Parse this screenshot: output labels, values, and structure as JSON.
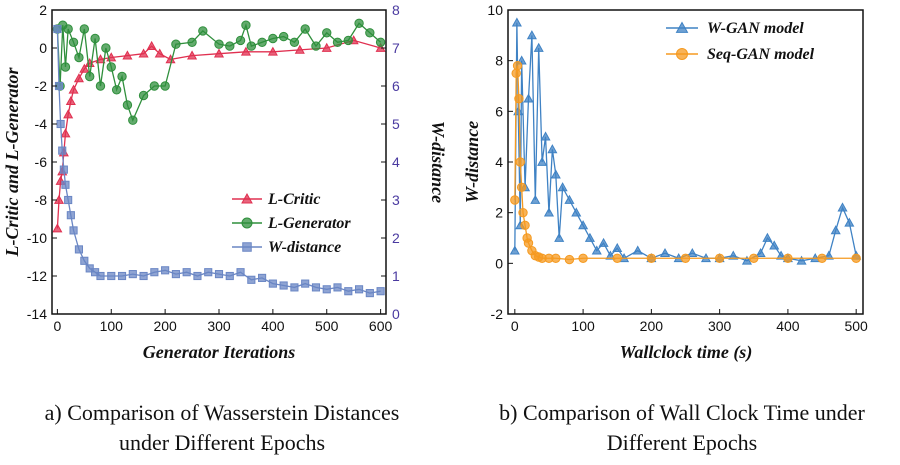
{
  "captions": {
    "left": [
      "a) Comparison of Wasserstein Distances",
      "under Different Epochs"
    ],
    "right": [
      "b) Comparison of Wall Clock Time under",
      "Different Epochs"
    ]
  },
  "chart_data": [
    {
      "type": "line",
      "xlabel": "Generator Iterations",
      "ylabel": "L-Critic and L-Generator",
      "y2label": "W-distance",
      "xlim": [
        -10,
        610
      ],
      "ylim": [
        -14,
        2
      ],
      "y2lim": [
        0,
        8
      ],
      "xticks": [
        0,
        100,
        200,
        300,
        400,
        500,
        600
      ],
      "yticks": [
        2,
        0,
        -2,
        -4,
        -6,
        -8,
        -10,
        -12,
        -14
      ],
      "y2ticks": [
        8,
        7,
        6,
        5,
        4,
        3,
        2,
        1,
        0
      ],
      "legend_position": "right-middle",
      "series": [
        {
          "name": "L-Critic",
          "axis": "left",
          "color": "#e03050",
          "marker": "triangle",
          "x": [
            0,
            3,
            6,
            9,
            12,
            15,
            20,
            25,
            30,
            40,
            50,
            60,
            80,
            100,
            130,
            160,
            175,
            190,
            210,
            250,
            300,
            350,
            400,
            450,
            500,
            550,
            600
          ],
          "y": [
            -9.5,
            -8.0,
            -7.0,
            -6.5,
            -5.5,
            -4.5,
            -3.5,
            -2.8,
            -2.2,
            -1.6,
            -1.1,
            -0.8,
            -0.6,
            -0.5,
            -0.4,
            -0.3,
            0.1,
            -0.3,
            -0.6,
            -0.4,
            -0.3,
            -0.2,
            -0.2,
            -0.1,
            0.0,
            0.4,
            0.0
          ]
        },
        {
          "name": "L-Generator",
          "axis": "left",
          "color": "#2f8f3c",
          "marker": "circle",
          "x": [
            0,
            5,
            10,
            15,
            20,
            30,
            40,
            50,
            60,
            70,
            80,
            90,
            100,
            110,
            120,
            130,
            140,
            160,
            180,
            200,
            220,
            250,
            270,
            300,
            320,
            340,
            350,
            360,
            380,
            400,
            420,
            440,
            460,
            480,
            500,
            520,
            540,
            560,
            580,
            600
          ],
          "y": [
            1.0,
            -2.0,
            1.2,
            -1.0,
            1.0,
            0.3,
            -0.5,
            1.0,
            -1.5,
            0.5,
            -2.0,
            0.0,
            -1.0,
            -2.2,
            -1.5,
            -3.0,
            -3.8,
            -2.5,
            -2.0,
            -2.0,
            0.2,
            0.3,
            0.9,
            0.2,
            0.1,
            0.4,
            1.2,
            0.1,
            0.3,
            0.5,
            0.6,
            0.3,
            1.0,
            0.1,
            0.8,
            0.3,
            0.4,
            1.3,
            0.8,
            0.3
          ]
        },
        {
          "name": "W-distance",
          "axis": "right",
          "color": "#6a86c4",
          "marker": "square",
          "x": [
            0,
            3,
            6,
            9,
            12,
            15,
            20,
            25,
            30,
            40,
            50,
            60,
            70,
            80,
            100,
            120,
            140,
            160,
            180,
            200,
            220,
            240,
            260,
            280,
            300,
            320,
            340,
            360,
            380,
            400,
            420,
            440,
            460,
            480,
            500,
            520,
            540,
            560,
            580,
            600
          ],
          "y": [
            7.5,
            6.0,
            5.0,
            4.3,
            3.8,
            3.4,
            3.0,
            2.6,
            2.2,
            1.7,
            1.4,
            1.2,
            1.1,
            1.0,
            1.0,
            1.0,
            1.05,
            1.0,
            1.1,
            1.15,
            1.05,
            1.1,
            1.0,
            1.1,
            1.05,
            1.0,
            1.1,
            0.9,
            0.95,
            0.8,
            0.75,
            0.7,
            0.8,
            0.7,
            0.65,
            0.7,
            0.6,
            0.65,
            0.55,
            0.6
          ]
        }
      ]
    },
    {
      "type": "line",
      "xlabel": "Wallclock time (s)",
      "ylabel": "W-distance",
      "xlim": [
        -10,
        510
      ],
      "ylim": [
        -2,
        10
      ],
      "xticks": [
        0,
        100,
        200,
        300,
        400,
        500
      ],
      "yticks": [
        10,
        8,
        6,
        4,
        2,
        0,
        -2
      ],
      "legend_position": "top-right",
      "series": [
        {
          "name": "W-GAN model",
          "color": "#3f82c4",
          "marker": "triangle",
          "x": [
            0,
            3,
            5,
            8,
            10,
            15,
            20,
            25,
            30,
            35,
            40,
            45,
            50,
            55,
            60,
            65,
            70,
            80,
            90,
            100,
            110,
            120,
            130,
            140,
            150,
            160,
            180,
            200,
            220,
            240,
            260,
            280,
            300,
            320,
            340,
            360,
            370,
            380,
            390,
            400,
            420,
            440,
            460,
            470,
            480,
            490,
            500
          ],
          "y": [
            0.5,
            9.5,
            6.0,
            1.5,
            8.0,
            3.0,
            6.5,
            9.0,
            2.5,
            8.5,
            4.0,
            5.0,
            2.0,
            4.5,
            3.5,
            1.0,
            3.0,
            2.5,
            2.0,
            1.5,
            1.0,
            0.5,
            0.8,
            0.3,
            0.6,
            0.2,
            0.5,
            0.2,
            0.4,
            0.2,
            0.4,
            0.2,
            0.2,
            0.3,
            0.1,
            0.4,
            1.0,
            0.7,
            0.3,
            0.2,
            0.1,
            0.2,
            0.3,
            1.3,
            2.2,
            1.6,
            0.3
          ]
        },
        {
          "name": "Seq-GAN model",
          "color": "#f59a20",
          "marker": "circle",
          "x": [
            0,
            2,
            4,
            6,
            8,
            10,
            12,
            15,
            18,
            20,
            25,
            30,
            35,
            40,
            50,
            60,
            80,
            100,
            150,
            200,
            250,
            300,
            350,
            400,
            450,
            500
          ],
          "y": [
            2.5,
            7.5,
            7.8,
            6.5,
            4.0,
            3.0,
            2.0,
            1.5,
            1.0,
            0.8,
            0.5,
            0.3,
            0.25,
            0.2,
            0.2,
            0.2,
            0.15,
            0.2,
            0.2,
            0.2,
            0.2,
            0.2,
            0.2,
            0.2,
            0.2,
            0.2
          ]
        }
      ]
    }
  ]
}
